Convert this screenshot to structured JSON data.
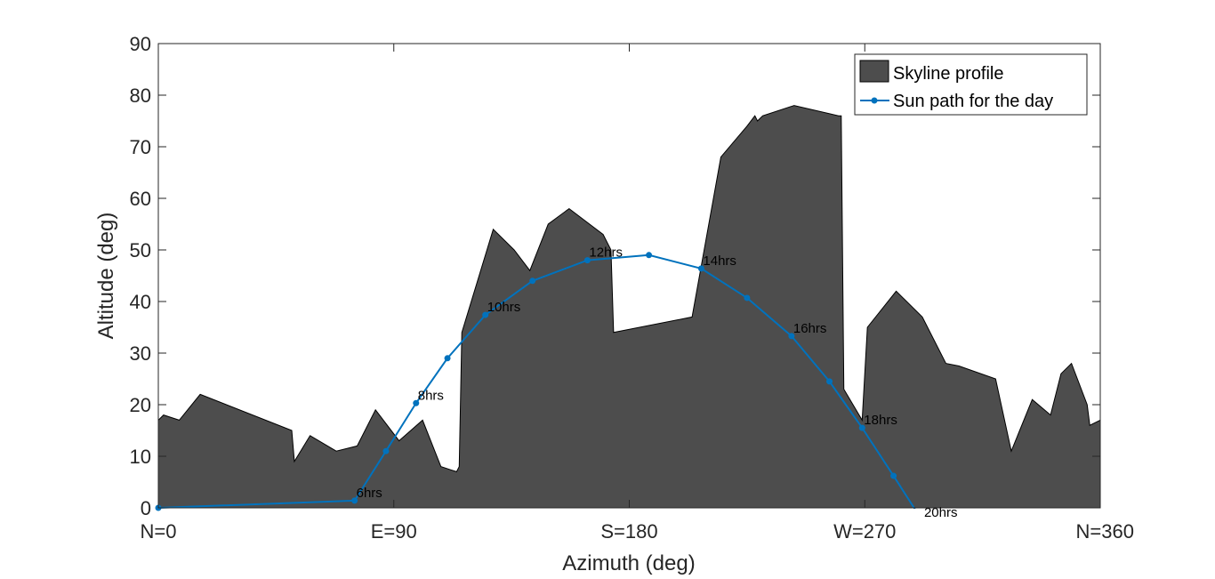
{
  "chart_data": {
    "type": "area",
    "xlabel": "Azimuth (deg)",
    "ylabel": "Altitude (deg)",
    "xlim": [
      0,
      360
    ],
    "ylim": [
      0,
      90
    ],
    "xticks": [
      0,
      90,
      180,
      270,
      360
    ],
    "xtick_labels": [
      "N=0",
      "E=90",
      "S=180",
      "W=270",
      "N=360"
    ],
    "yticks": [
      0,
      10,
      20,
      30,
      40,
      50,
      60,
      70,
      80,
      90
    ],
    "ytick_labels": [
      "0",
      "10",
      "20",
      "30",
      "40",
      "50",
      "60",
      "70",
      "80",
      "90"
    ],
    "grid": false,
    "legend_position": "top-right",
    "series": [
      {
        "name": "Skyline profile",
        "kind": "area",
        "color": "#4d4d4d",
        "x": [
          0,
          2,
          8,
          16,
          51,
          52,
          58,
          68,
          76,
          83,
          92,
          101,
          108,
          114,
          115,
          116,
          128,
          136,
          142,
          149,
          157,
          170,
          173,
          174,
          204,
          215,
          225,
          228,
          229,
          231,
          243,
          260,
          261,
          262,
          269,
          271,
          282,
          292,
          301,
          306,
          320,
          326,
          334,
          341,
          345,
          349,
          355,
          356,
          360
        ],
        "y": [
          17,
          18,
          17,
          22,
          15,
          9,
          14,
          11,
          12,
          19,
          13,
          17,
          8,
          7,
          8,
          34,
          54,
          50,
          46,
          55,
          58,
          53,
          50,
          34,
          37,
          68,
          74,
          76,
          75,
          76,
          78,
          76,
          76,
          23,
          17,
          35,
          42,
          37,
          28,
          27.5,
          25,
          11,
          21,
          18,
          26,
          28,
          20,
          16,
          17
        ]
      },
      {
        "name": "Sun path for the day",
        "kind": "line",
        "color": "#0072bd",
        "x": [
          0,
          75,
          87,
          98.5,
          110.5,
          125,
          143,
          164,
          187.5,
          207.5,
          225,
          242,
          256.5,
          269,
          281
        ],
        "y": [
          0,
          1.4,
          11,
          20.3,
          29,
          37.4,
          44,
          48,
          49,
          46.4,
          40.7,
          33.3,
          24.5,
          15.5,
          6.2
        ]
      }
    ],
    "annotations": [
      {
        "text": "6hrs",
        "x": 75,
        "y": 1.4
      },
      {
        "text": "8hrs",
        "x": 98.5,
        "y": 20.3
      },
      {
        "text": "10hrs",
        "x": 125,
        "y": 37.4
      },
      {
        "text": "12hrs",
        "x": 164,
        "y": 48
      },
      {
        "text": "14hrs",
        "x": 207.5,
        "y": 46.4
      },
      {
        "text": "16hrs",
        "x": 242,
        "y": 33.3
      },
      {
        "text": "18hrs",
        "x": 269,
        "y": 15.5
      },
      {
        "text": "20hrs",
        "x": 292,
        "y": -2.5
      }
    ]
  }
}
